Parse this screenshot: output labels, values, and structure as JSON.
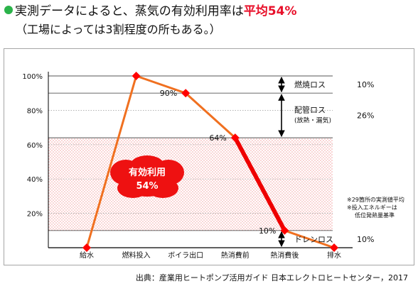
{
  "header": {
    "title_text": "実測データによると、蒸気の有効利用率は",
    "title_highlight": "平均54%",
    "subtitle": "（工場によっては3割程度の所もある。）",
    "bullet_color": "#2bb34a",
    "highlight_color": "#e8102a"
  },
  "source": "出典：産業用ヒートポンプ活用ガイド 日本エレクトロヒートセンター，2017",
  "colors": {
    "line": "#f07020",
    "line_emphasis": "#ee0000",
    "marker": "#ff0000",
    "hatch": "#f4a6a6",
    "grid": "#9a9a9a",
    "blob_fill": "#ee1111",
    "blob_text": "#ffffff"
  },
  "chart_data": {
    "type": "line",
    "categories": [
      "給水",
      "燃料投入",
      "ボイラ出口",
      "熱消費前",
      "熱消費後",
      "排水"
    ],
    "values": [
      0,
      100,
      90,
      64,
      10,
      0
    ],
    "point_labels": [
      "",
      "",
      "90%",
      "64%",
      "10%",
      ""
    ],
    "emphasized_segments": [
      [
        3,
        4
      ]
    ],
    "ylim": [
      0,
      100
    ],
    "yticks": [
      20,
      40,
      60,
      80,
      100
    ],
    "ytick_labels": [
      "20%",
      "40%",
      "60%",
      "80%",
      "100%"
    ],
    "grid": "horizontal dotted lines at each y tick",
    "shaded_band": {
      "from": 10,
      "to": 64
    },
    "reference_lines": [
      100,
      90,
      64,
      10
    ],
    "callout": {
      "line1": "有効利用",
      "line2": "54%"
    },
    "losses": [
      {
        "name": "燃焼ロス",
        "sub": "",
        "value": "10%",
        "from": 100,
        "to": 90
      },
      {
        "name": "配管ロス",
        "sub": "(放熱・漏気)",
        "value": "26%",
        "from": 90,
        "to": 64
      },
      {
        "name": "ドレンロス",
        "sub": "",
        "value": "10%",
        "from": 10,
        "to": 0
      }
    ],
    "notes": [
      "※29箇所の実測値平均",
      "※投入エネルギーは",
      "低位発熱量基準"
    ]
  }
}
